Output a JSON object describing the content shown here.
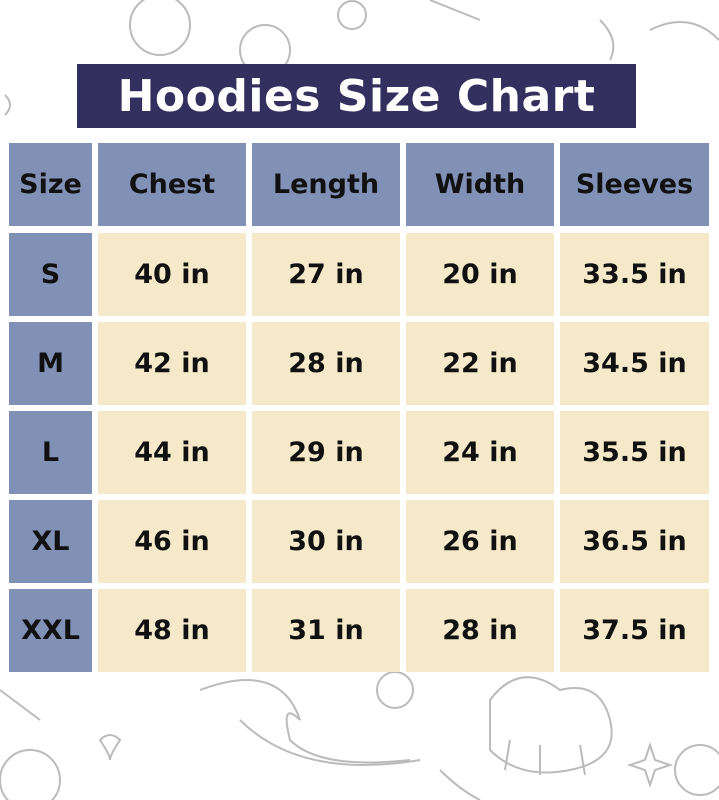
{
  "title": "Hoodies Size Chart",
  "colors": {
    "title_bg": "#33305f",
    "header_bg": "#8191b6",
    "cell_bg": "#f5e9c9"
  },
  "table": {
    "headers": [
      "Size",
      "Chest",
      "Length",
      "Width",
      "Sleeves"
    ],
    "rows": [
      [
        "S",
        "40 in",
        "27 in",
        "20 in",
        "33.5 in"
      ],
      [
        "M",
        "42 in",
        "28 in",
        "22 in",
        "34.5 in"
      ],
      [
        "L",
        "44 in",
        "29 in",
        "24 in",
        "35.5 in"
      ],
      [
        "XL",
        "46 in",
        "30 in",
        "26 in",
        "36.5 in"
      ],
      [
        "XXL",
        "48 in",
        "31 in",
        "28 in",
        "37.5 in"
      ]
    ]
  }
}
